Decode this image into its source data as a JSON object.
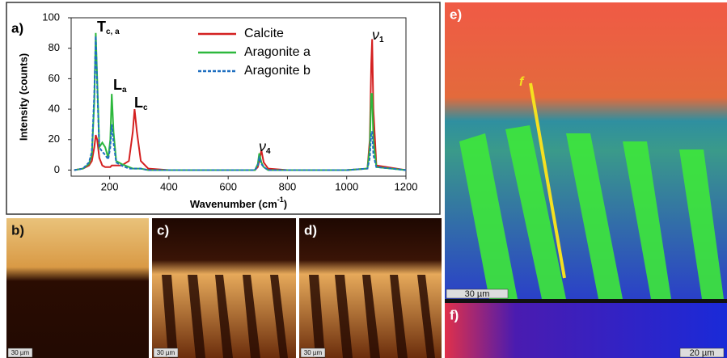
{
  "chart_data": {
    "type": "line",
    "panel_label": "a)",
    "ylabel": "Intensity (counts)",
    "xlabel": {
      "text": "Wavenumber (cm",
      "sup": "-1",
      "end": ")"
    },
    "x": [
      80,
      110,
      130,
      140,
      148,
      153,
      158,
      165,
      175,
      185,
      195,
      202,
      207,
      213,
      222,
      240,
      265,
      278,
      284,
      292,
      305,
      330,
      400,
      600,
      690,
      700,
      705,
      712,
      720,
      735,
      800,
      1000,
      1070,
      1078,
      1083,
      1086,
      1090,
      1100,
      1200
    ],
    "series": [
      {
        "name": "Calcite",
        "color": "#d42020",
        "style": "solid",
        "values": [
          0,
          1,
          3,
          6,
          15,
          23,
          20,
          8,
          3,
          2,
          2,
          2,
          3,
          3,
          3,
          3,
          6,
          25,
          40,
          25,
          6,
          1,
          0,
          0,
          0,
          2,
          6,
          13,
          5,
          1,
          0,
          0,
          1,
          20,
          70,
          86,
          40,
          3,
          0
        ]
      },
      {
        "name": "Aragonite a",
        "color": "#2db83d",
        "style": "solid",
        "values": [
          0,
          1,
          4,
          10,
          45,
          90,
          60,
          15,
          18,
          15,
          8,
          20,
          50,
          25,
          6,
          4,
          2,
          1,
          1,
          1,
          1,
          0,
          0,
          0,
          0,
          4,
          11,
          5,
          2,
          0,
          0,
          0,
          1,
          15,
          50,
          50,
          20,
          2,
          0
        ]
      },
      {
        "name": "Aragonite b",
        "color": "#1f6fc0",
        "style": "dashed",
        "values": [
          0,
          1,
          5,
          12,
          50,
          88,
          55,
          15,
          12,
          10,
          7,
          15,
          30,
          18,
          5,
          3,
          1,
          1,
          1,
          1,
          1,
          0,
          0,
          0,
          0,
          3,
          8,
          4,
          2,
          0,
          0,
          0,
          1,
          8,
          25,
          25,
          10,
          2,
          0
        ]
      }
    ],
    "xlim": [
      70,
      1200
    ],
    "xticks": [
      200,
      400,
      600,
      800,
      1000,
      1200
    ],
    "ylim": [
      -4,
      100
    ],
    "yticks": [
      0,
      20,
      40,
      60,
      80,
      100
    ],
    "annotations": [
      {
        "text": "T",
        "sub": "c, a"
      },
      {
        "text": "L",
        "sub": "a"
      },
      {
        "text": "L",
        "sub": "c"
      },
      {
        "text": "ν",
        "sub": "4"
      },
      {
        "text": "ν",
        "sub": "1"
      }
    ]
  },
  "panels": {
    "b": {
      "label": "b)",
      "scale": "30 µm"
    },
    "c": {
      "label": "c)",
      "scale": "30 µm"
    },
    "d": {
      "label": "d)",
      "scale": "30 µm"
    },
    "e": {
      "label": "e)",
      "scale": "30 µm",
      "line_label": "f"
    },
    "f": {
      "label": "f)",
      "scale": "20 µm"
    }
  }
}
